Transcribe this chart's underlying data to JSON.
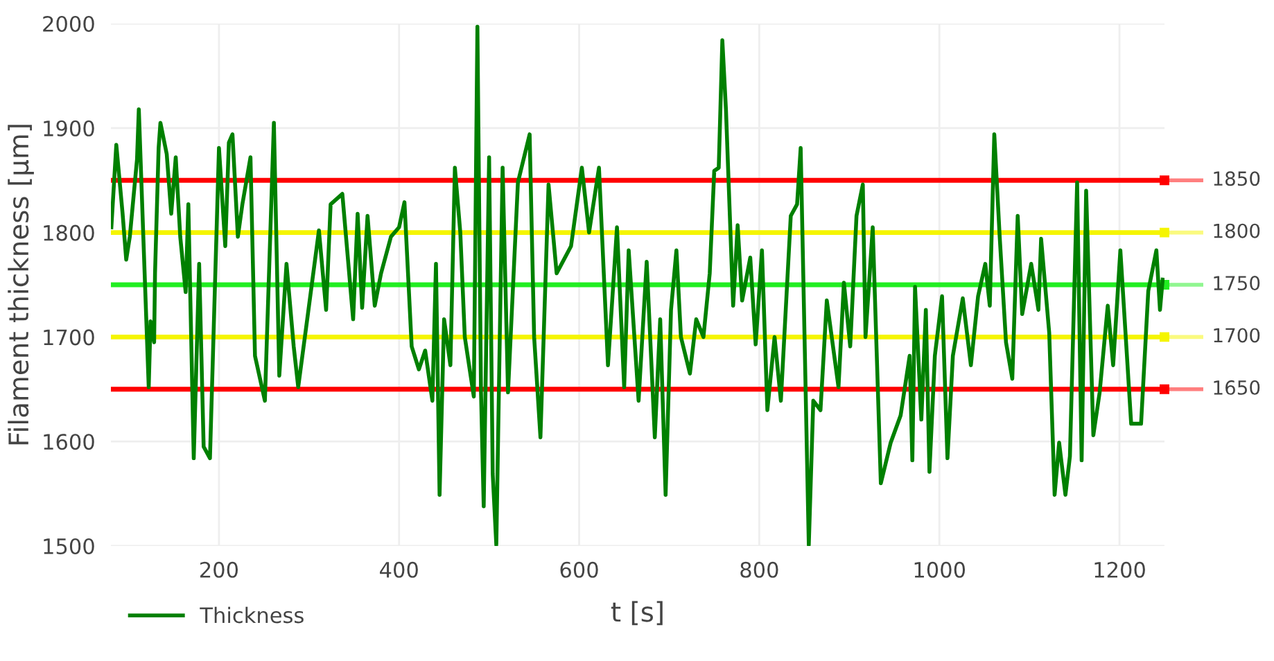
{
  "chart_data": {
    "type": "line",
    "xlabel": "t [s]",
    "ylabel": "Filament thickness [µm]",
    "xlim": [
      80,
      1250
    ],
    "ylim": [
      1500,
      2000
    ],
    "xticks": [
      200,
      400,
      600,
      800,
      1000,
      1200
    ],
    "yticks": [
      1500,
      1600,
      1700,
      1800,
      1900,
      2000
    ],
    "grid": true,
    "legend": "bottom left",
    "line_style": "solid",
    "marker": "none",
    "series": [
      {
        "name": "Thickness",
        "color": "#008000",
        "x": [
          80.5,
          86,
          93,
          97,
          101,
          109,
          111,
          116,
          122,
          124,
          128,
          129,
          133,
          135,
          142,
          147,
          152,
          157,
          163,
          166,
          172,
          178,
          183,
          190,
          200,
          207,
          211,
          215,
          221,
          226,
          235,
          240,
          251,
          261,
          267,
          275,
          283,
          288,
          298,
          311,
          319,
          324,
          337,
          349,
          354,
          359,
          365,
          373,
          380,
          391,
          400,
          406,
          414,
          422,
          429,
          437,
          441,
          445,
          450,
          457,
          462,
          468,
          473,
          483,
          487,
          491,
          494,
          500,
          504,
          508,
          515,
          521,
          532,
          545,
          550,
          557,
          566,
          575,
          591,
          603,
          611,
          622,
          632,
          642,
          650,
          655,
          666,
          675,
          684,
          690,
          696,
          702,
          708,
          713,
          723,
          730,
          738,
          745,
          750,
          755,
          759,
          763,
          771,
          776,
          781,
          790,
          796,
          803,
          809,
          817,
          824,
          835,
          842,
          846,
          855,
          860,
          868,
          875,
          888,
          894,
          901,
          908,
          915,
          918,
          926,
          935,
          946,
          957,
          967,
          970,
          973,
          980,
          985,
          989,
          995,
          1003,
          1009,
          1015,
          1026,
          1035,
          1043,
          1051,
          1056,
          1061,
          1067,
          1074,
          1081,
          1087,
          1092,
          1102,
          1110,
          1113,
          1122,
          1128,
          1133,
          1140,
          1145,
          1153,
          1158,
          1163,
          1171,
          1178,
          1187,
          1193,
          1201,
          1213,
          1224,
          1232,
          1241,
          1245,
          1248
        ],
        "values": [
          1805,
          1884,
          1818,
          1774,
          1796,
          1870,
          1918,
          1796,
          1652,
          1715,
          1695,
          1761,
          1881,
          1905,
          1875,
          1818,
          1872,
          1796,
          1743,
          1827,
          1584,
          1770,
          1595,
          1584,
          1881,
          1787,
          1886,
          1894,
          1796,
          1827,
          1872,
          1682,
          1639,
          1905,
          1663,
          1770,
          1691,
          1652,
          1717,
          1802,
          1726,
          1827,
          1837,
          1717,
          1818,
          1728,
          1816,
          1730,
          1761,
          1796,
          1805,
          1829,
          1691,
          1669,
          1687,
          1639,
          1770,
          1549,
          1717,
          1673,
          1862,
          1800,
          1700,
          1643,
          1997,
          1647,
          1538,
          1872,
          1569,
          1501,
          1862,
          1647,
          1848,
          1894,
          1700,
          1604,
          1846,
          1761,
          1787,
          1862,
          1800,
          1862,
          1673,
          1805,
          1652,
          1783,
          1639,
          1772,
          1604,
          1717,
          1549,
          1726,
          1783,
          1700,
          1665,
          1717,
          1700,
          1761,
          1859,
          1862,
          1984,
          1918,
          1730,
          1807,
          1735,
          1776,
          1693,
          1783,
          1630,
          1700,
          1639,
          1816,
          1827,
          1881,
          1501,
          1639,
          1630,
          1735,
          1652,
          1752,
          1691,
          1816,
          1846,
          1700,
          1805,
          1560,
          1599,
          1625,
          1682,
          1582,
          1748,
          1621,
          1726,
          1571,
          1682,
          1739,
          1584,
          1682,
          1737,
          1673,
          1739,
          1770,
          1730,
          1894,
          1796,
          1695,
          1660,
          1816,
          1722,
          1770,
          1726,
          1794,
          1704,
          1549,
          1599,
          1549,
          1586,
          1848,
          1582,
          1840,
          1606,
          1647,
          1730,
          1673,
          1783,
          1617,
          1617,
          1744,
          1783,
          1726,
          1755
        ]
      }
    ],
    "ref_lines": [
      {
        "axis": "y",
        "value": 1850,
        "label": "1850",
        "color": "#ff0000"
      },
      {
        "axis": "y",
        "value": 1800,
        "label": "1800",
        "color": "#f5f500"
      },
      {
        "axis": "y",
        "value": 1750,
        "label": "1750",
        "color": "#22ee22"
      },
      {
        "axis": "y",
        "value": 1700,
        "label": "1700",
        "color": "#f5f500"
      },
      {
        "axis": "y",
        "value": 1650,
        "label": "1650",
        "color": "#ff0000"
      }
    ]
  }
}
